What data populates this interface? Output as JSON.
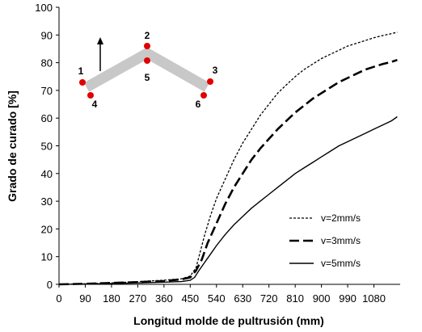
{
  "chart_data": {
    "type": "line",
    "title": "",
    "xlabel": "Longitud molde de pultrusión (mm)",
    "ylabel": "Grado de curado [%]",
    "xlim": [
      0,
      1170
    ],
    "ylim": [
      0,
      100
    ],
    "x_ticks": [
      0,
      90,
      180,
      270,
      360,
      450,
      540,
      630,
      720,
      810,
      900,
      990,
      1080
    ],
    "y_ticks": [
      0,
      10,
      20,
      30,
      40,
      50,
      60,
      70,
      80,
      90,
      100
    ],
    "grid": false,
    "legend_position": "bottom-right",
    "series": [
      {
        "name": "v=2mm/s",
        "style": "dotted",
        "x": [
          0,
          90,
          180,
          270,
          360,
          420,
          450,
          470,
          480,
          500,
          520,
          540,
          570,
          600,
          630,
          660,
          690,
          720,
          750,
          780,
          810,
          840,
          870,
          900,
          930,
          960,
          990,
          1020,
          1050,
          1080,
          1110,
          1140,
          1160
        ],
        "y": [
          0,
          0.2,
          0.5,
          1,
          1.5,
          2,
          3,
          6,
          10,
          18,
          25,
          31,
          38,
          45,
          51,
          56,
          61,
          65,
          69,
          72,
          75,
          77.5,
          79.5,
          81.5,
          83,
          84.5,
          86,
          87,
          88,
          89,
          89.8,
          90.5,
          91
        ]
      },
      {
        "name": "v=3mm/s",
        "style": "dashed",
        "x": [
          0,
          90,
          180,
          270,
          360,
          420,
          450,
          470,
          490,
          510,
          540,
          570,
          600,
          630,
          660,
          690,
          720,
          750,
          780,
          810,
          840,
          870,
          900,
          930,
          960,
          990,
          1020,
          1050,
          1080,
          1110,
          1140,
          1160
        ],
        "y": [
          0,
          0.2,
          0.5,
          0.8,
          1.2,
          1.8,
          2.5,
          5,
          9,
          15,
          22,
          29,
          35,
          40,
          45,
          49,
          52.5,
          56,
          59,
          62,
          64.5,
          67,
          69,
          71,
          73,
          74.5,
          76,
          77.5,
          78.5,
          79.5,
          80.3,
          81
        ]
      },
      {
        "name": "v=5mm/s",
        "style": "solid",
        "x": [
          0,
          90,
          180,
          270,
          360,
          420,
          450,
          465,
          480,
          500,
          520,
          540,
          570,
          600,
          630,
          660,
          690,
          720,
          750,
          780,
          810,
          840,
          870,
          900,
          930,
          960,
          990,
          1020,
          1050,
          1080,
          1110,
          1140,
          1160
        ],
        "y": [
          0,
          0.1,
          0.3,
          0.5,
          0.8,
          1,
          1.5,
          2.5,
          5,
          8,
          11,
          14,
          18,
          21.5,
          24.5,
          27.5,
          30,
          32.5,
          35,
          37.5,
          40,
          42,
          44,
          46,
          48,
          50,
          51.5,
          53,
          54.5,
          56,
          57.5,
          59,
          60.5
        ]
      }
    ],
    "inset": {
      "labels": [
        "1",
        "2",
        "3",
        "4",
        "5",
        "6"
      ],
      "bar_color": "#c8c8c8",
      "point_color": "#e00000"
    }
  }
}
